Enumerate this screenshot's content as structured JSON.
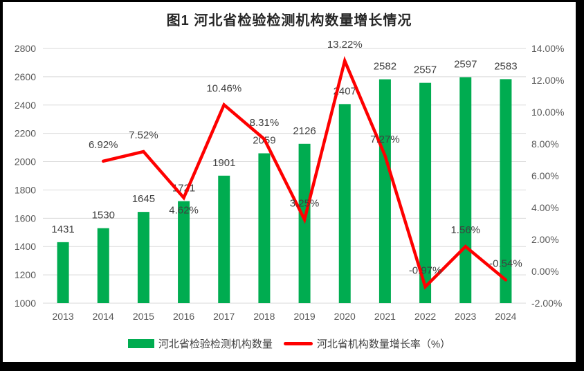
{
  "figure": {
    "title": "图1  河北省检验检测机构数量增长情况",
    "frame_color": "#000000",
    "background_color": "#ffffff"
  },
  "chart_data": {
    "type": "bar",
    "subtype": "combo-bar-line",
    "title": "图1  河北省检验检测机构数量增长情况",
    "categories": [
      "2013",
      "2014",
      "2015",
      "2016",
      "2017",
      "2018",
      "2019",
      "2020",
      "2021",
      "2022",
      "2023",
      "2024"
    ],
    "series": [
      {
        "name": "河北省检验检测机构数量",
        "type": "bar",
        "axis": "left",
        "color": "#00AC50",
        "values": [
          1431,
          1530,
          1645,
          1721,
          1901,
          2059,
          2126,
          2407,
          2582,
          2557,
          2597,
          2583
        ],
        "value_labels": [
          "1431",
          "1530",
          "1645",
          "1721",
          "1901",
          "2059",
          "2126",
          "2407",
          "2582",
          "2557",
          "2597",
          "2583"
        ]
      },
      {
        "name": "河北省机构数量增长率（%）",
        "type": "line",
        "axis": "right",
        "color": "#FE0000",
        "values": [
          null,
          6.92,
          7.52,
          4.62,
          10.46,
          8.31,
          3.25,
          13.22,
          7.27,
          -0.97,
          1.56,
          -0.54
        ],
        "value_labels": [
          "",
          "6.92%",
          "7.52%",
          "4.62%",
          "10.46%",
          "8.31%",
          "3.25%",
          "13.22%",
          "7.27%",
          "-0.97%",
          "1.56%",
          "-0.54%"
        ],
        "label_side": [
          "",
          "above",
          "above",
          "below",
          "above",
          "above",
          "above",
          "above",
          "above",
          "above",
          "above",
          "above"
        ]
      }
    ],
    "left_axis": {
      "min": 1000,
      "max": 2800,
      "step": 200,
      "ticks": [
        "2800",
        "2600",
        "2400",
        "2200",
        "2000",
        "1800",
        "1600",
        "1400",
        "1200",
        "1000"
      ]
    },
    "right_axis": {
      "min": -2,
      "max": 14,
      "step": 2,
      "ticks": [
        "14.00%",
        "12.00%",
        "10.00%",
        "8.00%",
        "6.00%",
        "4.00%",
        "2.00%",
        "0.00%",
        "-2.00%"
      ]
    },
    "grid": true,
    "gridline_color": "#D9D9D9",
    "axis_text_color": "#595959",
    "data_label_color": "#404040",
    "legend_position": "bottom"
  },
  "legend": {
    "items": [
      {
        "label": "河北省检验检测机构数量",
        "swatch": "bar",
        "color": "#00AC50"
      },
      {
        "label": "河北省机构数量增长率（%）",
        "swatch": "line",
        "color": "#FE0000"
      }
    ]
  }
}
